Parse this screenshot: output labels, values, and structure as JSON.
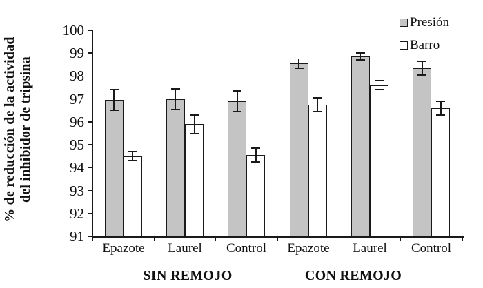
{
  "chart_data": {
    "type": "bar",
    "title": "",
    "ylabel_line1": "% de reducción de la actividad",
    "ylabel_line2": "del inhibidor de tripsina",
    "ylabel": "% de reducción de la actividad del inhibidor de tripsina",
    "xlabel": "",
    "ylim": [
      91,
      100
    ],
    "yticks": [
      91,
      92,
      93,
      94,
      95,
      96,
      97,
      98,
      99,
      100
    ],
    "grid": false,
    "legend_position": "top-right",
    "groups": [
      {
        "label": "SIN REMOJO",
        "categories": [
          "Epazote",
          "Laurel",
          "Control"
        ]
      },
      {
        "label": "CON REMOJO",
        "categories": [
          "Epazote",
          "Laurel",
          "Control"
        ]
      }
    ],
    "categories": [
      "Epazote",
      "Laurel",
      "Control",
      "Epazote",
      "Laurel",
      "Control"
    ],
    "series": [
      {
        "name": "Presión",
        "fill": "#c4c4c4",
        "edge": "#1a1a1a",
        "values": [
          96.95,
          97.0,
          96.9,
          98.55,
          98.85,
          98.35
        ],
        "errors": [
          0.45,
          0.45,
          0.45,
          0.2,
          0.15,
          0.3
        ]
      },
      {
        "name": "Barro",
        "fill": "#ffffff",
        "edge": "#1a1a1a",
        "values": [
          94.5,
          95.9,
          94.55,
          96.75,
          97.6,
          96.6
        ],
        "errors": [
          0.2,
          0.4,
          0.3,
          0.3,
          0.2,
          0.3
        ]
      }
    ]
  },
  "colors": {
    "axis": "#1a1a1a",
    "bar_gray": "#c4c4c4",
    "bar_white": "#ffffff",
    "background": "#ffffff"
  }
}
